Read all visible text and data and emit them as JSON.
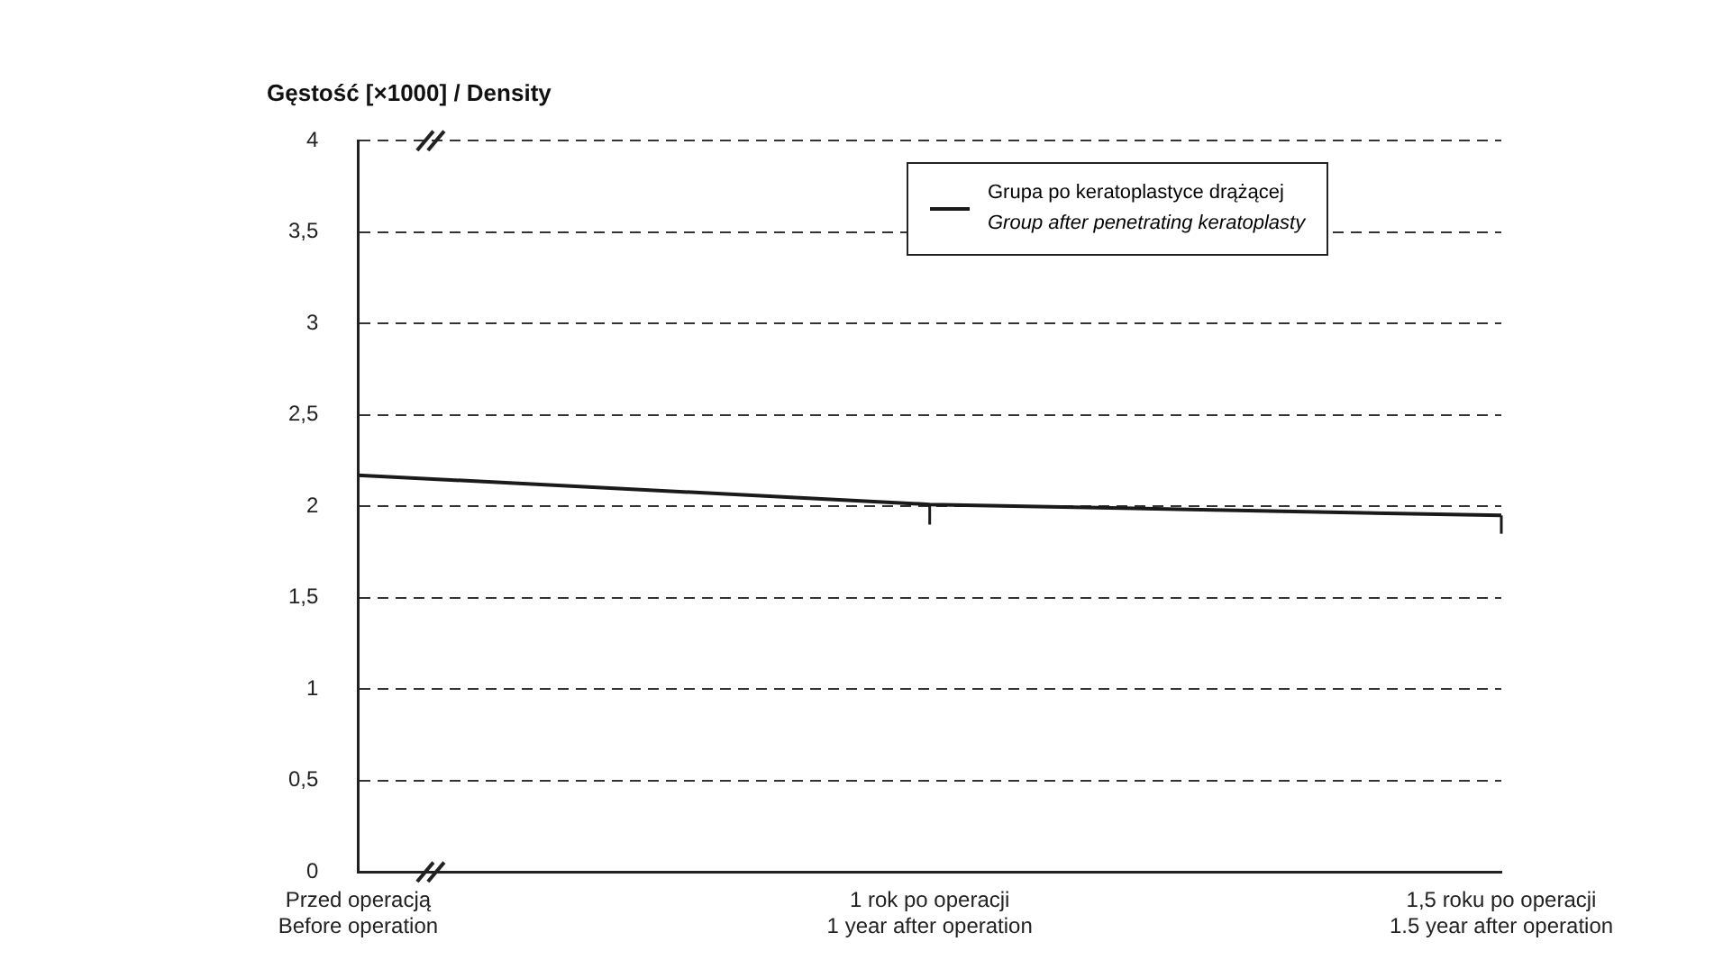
{
  "chart_data": {
    "type": "line",
    "ylabel": "Gęstość [×1000] / Density",
    "categories": [
      "Przed operacją\nBefore operation",
      "1 rok po operacji\n1 year after operation",
      "1,5 roku po operacji\n1.5 year after operation"
    ],
    "series": [
      {
        "name": "Grupa po keratoplastyce drążącej\nGroup after penetrating keratoplasty",
        "color": "#1a1a1a",
        "values": [
          2.17,
          2.01,
          1.95
        ],
        "errors": [
          null,
          [
            1.9,
            2.01
          ],
          [
            1.85,
            1.95
          ]
        ]
      }
    ],
    "ylim": [
      0,
      4
    ],
    "yticks": [
      0,
      {
        "value": 0.5,
        "label": "0,5"
      },
      1,
      {
        "value": 1.5,
        "label": "1,5"
      },
      2,
      {
        "value": 2.5,
        "label": "2,5"
      },
      3,
      {
        "value": 3.5,
        "label": "3,5"
      },
      4
    ],
    "grid": "y",
    "legend": "top right",
    "marker": "none",
    "line_style": "solid"
  }
}
